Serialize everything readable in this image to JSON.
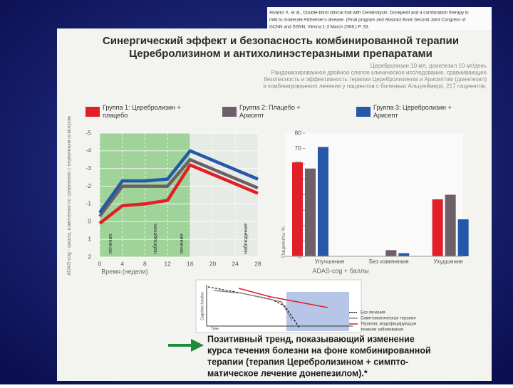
{
  "citation": [
    "Alvarez X. et al., Double-blind clinical trial with Cerebrolysin, Donepezil and a combination therapy in",
    "mild to moderate Alzheimer's disease. (Final program and Abstract Book Second Joint Congress of",
    "GCNN and SSNN, Vienna 1-3 March 2008.) P. 33."
  ],
  "title": [
    "Синергический эффект и безопасность комбинированной терапии",
    "Церебролизином и антихолинэстеразными препаратами"
  ],
  "subtitle": [
    "Церебролизин 10 мл, донепезил 10 мг/день",
    "Рандомизированное двойное слепое клиническое исследование, сравнивающее",
    "безопасность и эффективность терапии Церебролизином и Арисептом (донепезил)",
    "и комбинированного лечения у пациентов с болезнью Альцгеймера, 217 пациентов."
  ],
  "chart_data": [
    {
      "type": "line",
      "y_label": "ADAS-cog - шкала, изменения по сравнению с первичным осмотром",
      "x_label": "Время (недели)",
      "annotations": [
        "лечение",
        "наблюдение",
        "лечение",
        "наблюдение"
      ],
      "xlim": [
        0,
        28
      ],
      "xticks": [
        0,
        4,
        8,
        12,
        16,
        20,
        24,
        28
      ],
      "ylim": [
        2,
        -5
      ],
      "yticks": [
        -5,
        -4,
        -3,
        -2,
        -1,
        0,
        1,
        2
      ],
      "grid": true,
      "x": [
        0,
        4,
        8,
        12,
        16,
        28
      ],
      "series": [
        {
          "name": "Группа 1: Церебролизин + плацебо",
          "color": "#e01f26",
          "values": [
            0.1,
            -0.9,
            -1.0,
            -1.2,
            -3.2,
            -1.6
          ]
        },
        {
          "name": "Группа 2: Плацебо + Арисепт",
          "color": "#6e5f68",
          "values": [
            -0.3,
            -2.0,
            -2.0,
            -2.0,
            -3.5,
            -1.9
          ]
        },
        {
          "name": "Группа 3: Церебролизин + Арисепт",
          "color": "#2558a8",
          "values": [
            -0.5,
            -2.3,
            -2.3,
            -2.4,
            -4.0,
            -2.4
          ]
        }
      ]
    },
    {
      "type": "bar",
      "y_label": "Пациенты %",
      "x_label": "ADAS-cog + баллы",
      "categories": [
        "Улучшение",
        "Без изменения",
        "Ухудшение"
      ],
      "ylim": [
        0,
        80
      ],
      "yticks": [
        0,
        10,
        20,
        30,
        40,
        50,
        60,
        70,
        80
      ],
      "series": [
        {
          "color": "#e01f26",
          "values": [
            61,
            0,
            37
          ]
        },
        {
          "color": "#6e5f68",
          "values": [
            57,
            4,
            40
          ]
        },
        {
          "color": "#2558a8",
          "values": [
            71,
            2,
            24
          ]
        }
      ]
    }
  ],
  "inset": {
    "y_label": "Cognitive function",
    "x_label": "Time",
    "legend": [
      "Без лечения",
      "Симптоматическая терапия",
      "Терапия, модифицирующая",
      "течение заболевания"
    ]
  },
  "conclusion": [
    "Позитивный тренд, показывающий изменение",
    "курса течения болезни на фоне комбинированной",
    "терапии (терапия Церебролизином + симпто-",
    "матическое лечение донепезилом).*"
  ]
}
